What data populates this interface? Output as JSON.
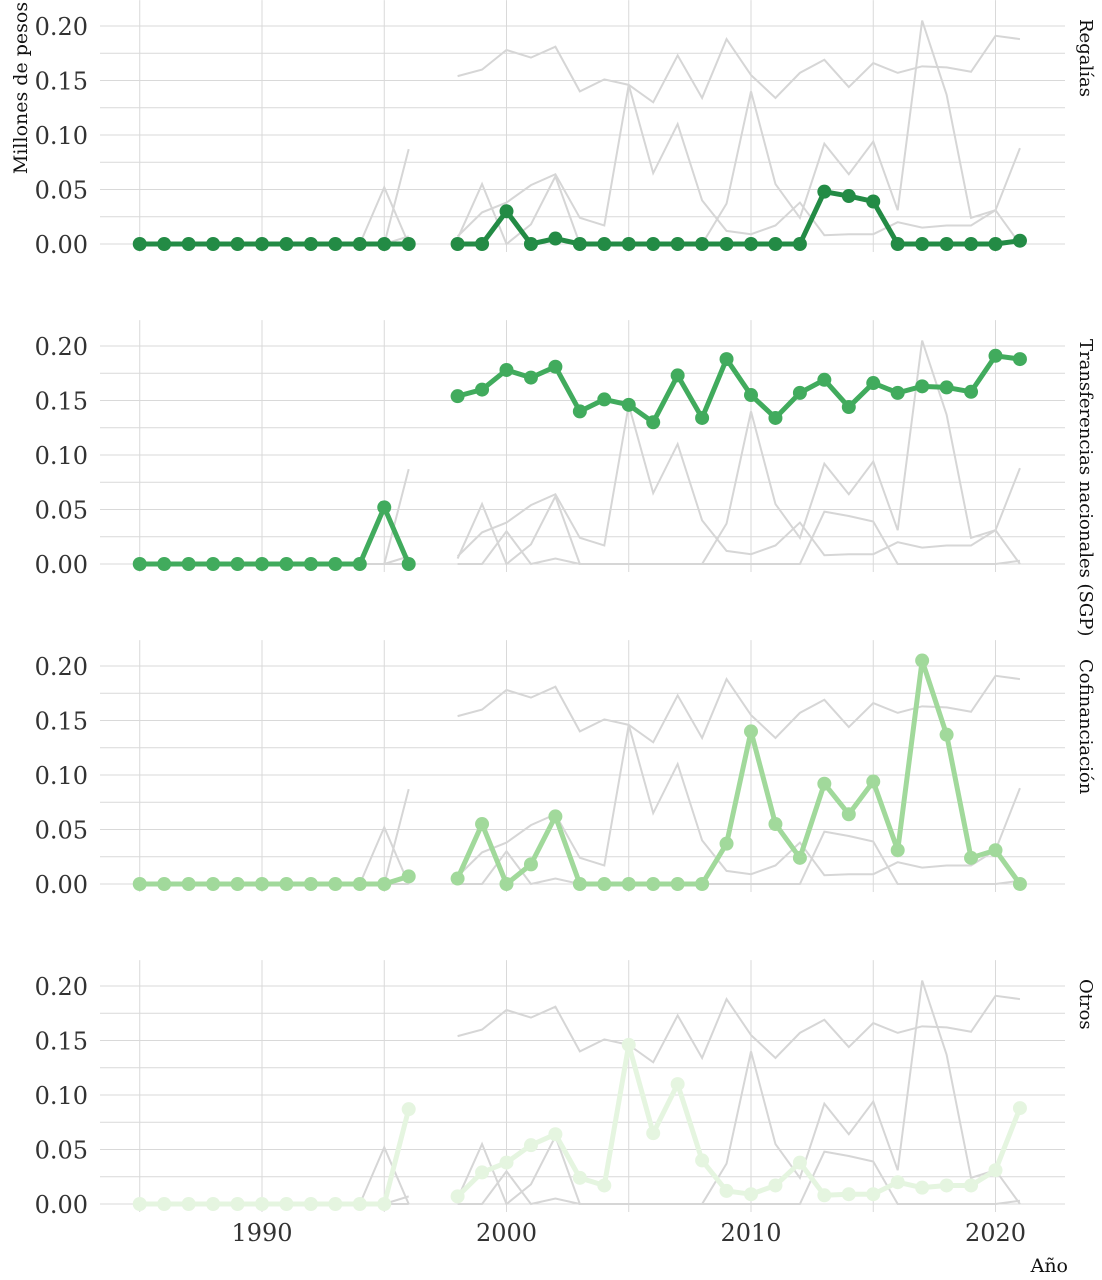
{
  "chart_data": {
    "type": "line",
    "ylabel": "Millones de pesos",
    "xlabel": "Año",
    "ylim": [
      0,
      0.21
    ],
    "xlim": [
      1983,
      2023
    ],
    "yticks": [
      0,
      0.05,
      0.1,
      0.15,
      0.2
    ],
    "ytick_labels": [
      "0.00",
      "0.05",
      "0.10",
      "0.15",
      "0.20"
    ],
    "xticks": [
      1990,
      2000,
      2010,
      2020
    ],
    "xtick_labels": [
      "1990",
      "2000",
      "2010",
      "2020"
    ],
    "grid": true,
    "years": [
      1985,
      1986,
      1987,
      1988,
      1989,
      1990,
      1991,
      1992,
      1993,
      1994,
      1995,
      1996,
      1998,
      1999,
      2000,
      2001,
      2002,
      2003,
      2004,
      2005,
      2006,
      2007,
      2008,
      2009,
      2010,
      2011,
      2012,
      2013,
      2014,
      2015,
      2016,
      2017,
      2018,
      2019,
      2020,
      2021
    ],
    "series": [
      {
        "name": "Regalías",
        "color": "#238b45",
        "values": [
          0,
          0,
          0,
          0,
          0,
          0,
          0,
          0,
          0,
          0,
          0,
          0,
          0,
          0,
          0.03,
          0,
          0.005,
          0,
          0,
          0,
          0,
          0,
          0,
          0,
          0,
          0,
          0,
          0.048,
          0.044,
          0.039,
          0,
          0,
          0,
          0,
          0,
          0.003
        ]
      },
      {
        "name": "Transferencias nacionales (SGP)",
        "color": "#41ab5d",
        "values": [
          0,
          0,
          0,
          0,
          0,
          0,
          0,
          0,
          0,
          0,
          0.052,
          0,
          0.154,
          0.16,
          0.178,
          0.171,
          0.181,
          0.14,
          0.151,
          0.146,
          0.13,
          0.173,
          0.134,
          0.188,
          0.155,
          0.134,
          0.157,
          0.169,
          0.144,
          0.166,
          0.157,
          0.163,
          0.162,
          0.158,
          0.191,
          0.188
        ]
      },
      {
        "name": "Cofinanciación",
        "color": "#a1d99b",
        "values": [
          0,
          0,
          0,
          0,
          0,
          0,
          0,
          0,
          0,
          0,
          0,
          0.007,
          0.005,
          0.055,
          0,
          0.018,
          0.062,
          0,
          0,
          0,
          0,
          0,
          0,
          0.037,
          0.14,
          0.055,
          0.024,
          0.092,
          0.064,
          0.094,
          0.031,
          0.205,
          0.137,
          0.024,
          0.031,
          0
        ]
      },
      {
        "name": "Otros",
        "color": "#e5f5e0",
        "values": [
          0,
          0,
          0,
          0,
          0,
          0,
          0,
          0,
          0,
          0,
          0,
          0.087,
          0.007,
          0.029,
          0.038,
          0.054,
          0.064,
          0.024,
          0.017,
          0.146,
          0.065,
          0.11,
          0.04,
          0.012,
          0.009,
          0.017,
          0.038,
          0.008,
          0.009,
          0.009,
          0.02,
          0.015,
          0.017,
          0.017,
          0.031,
          0.088
        ]
      }
    ]
  }
}
